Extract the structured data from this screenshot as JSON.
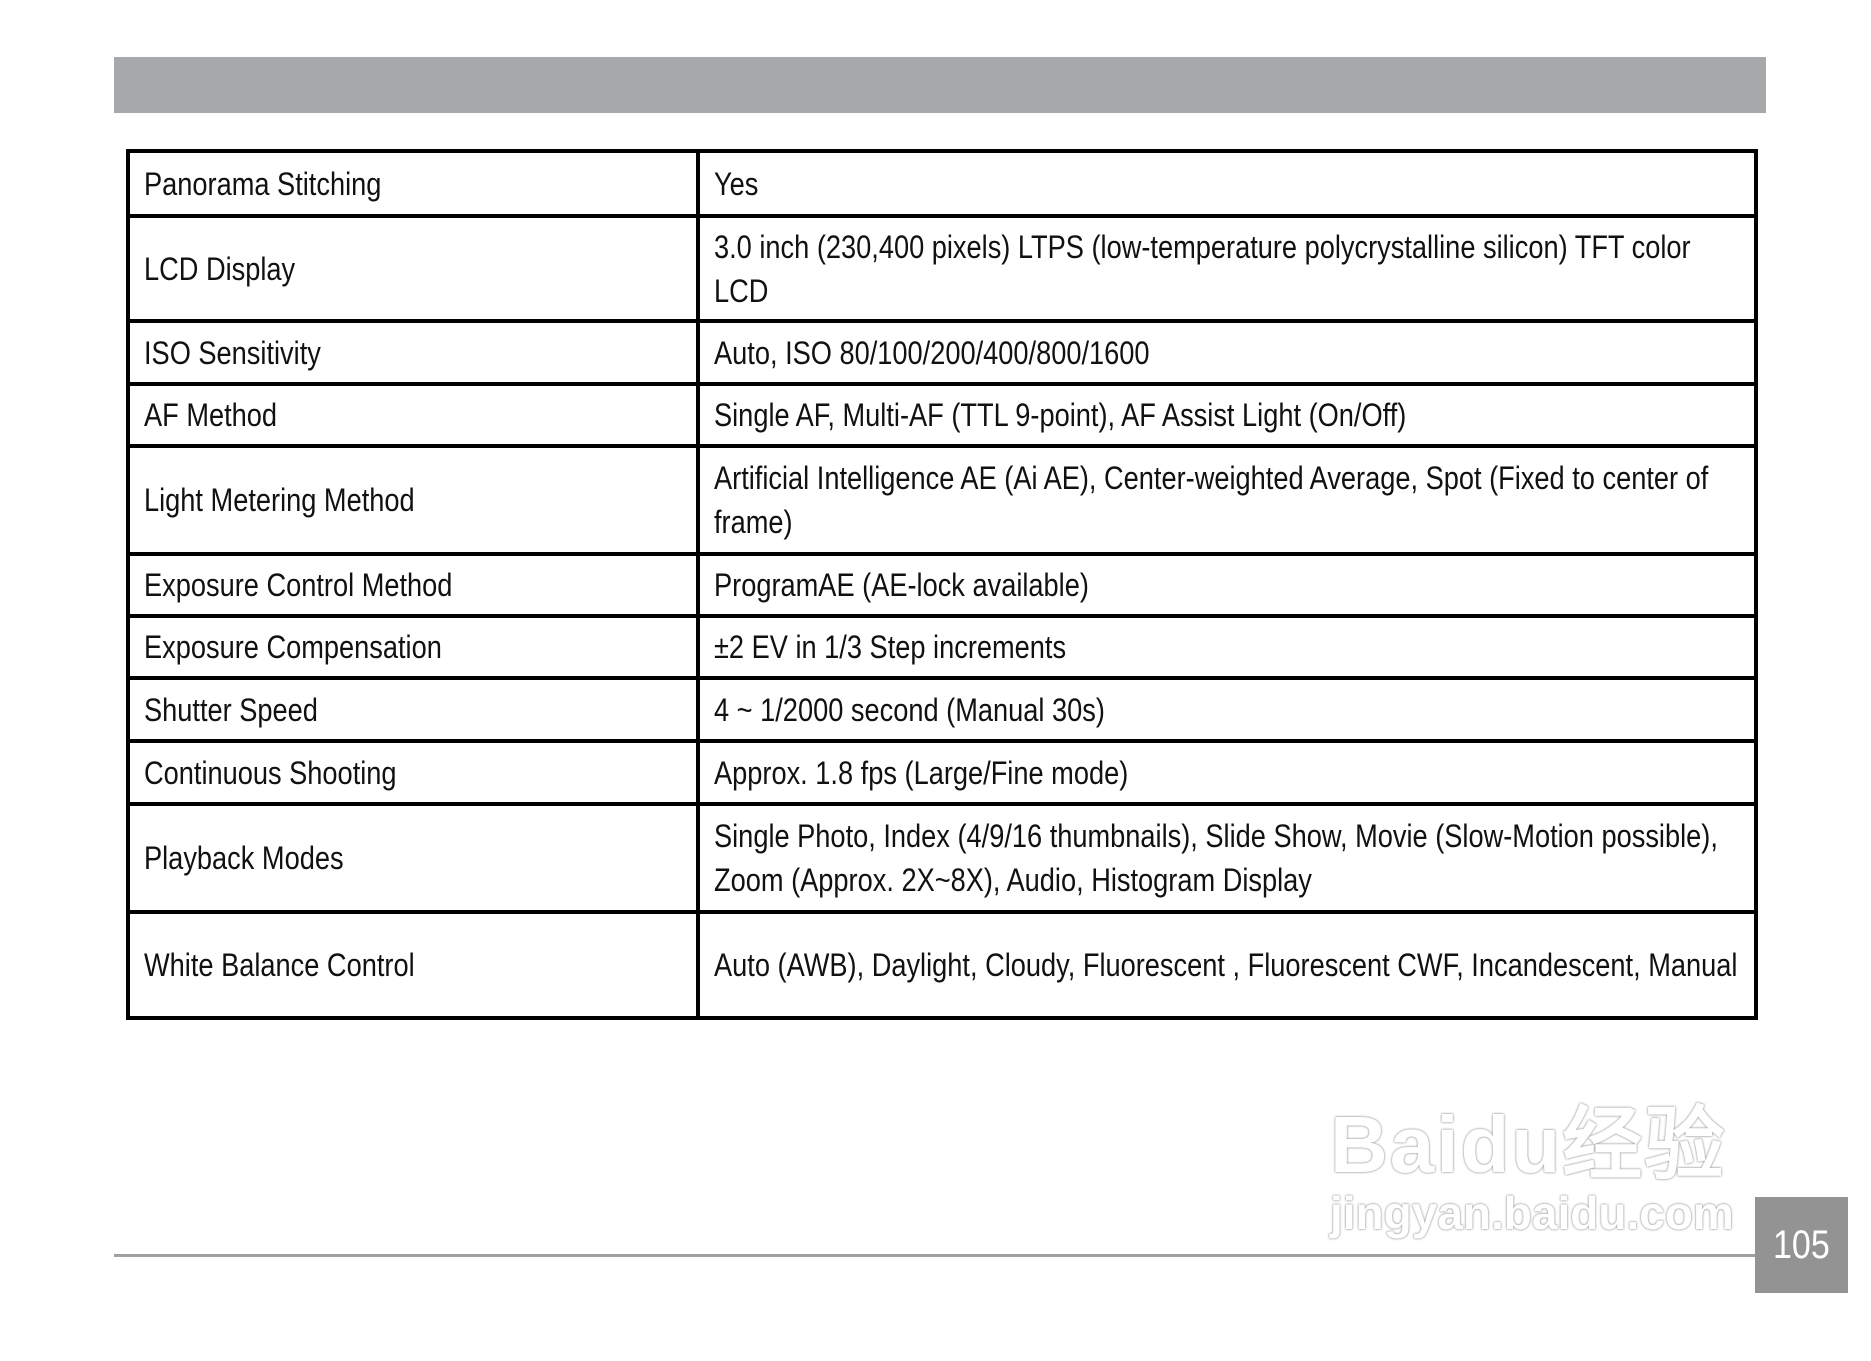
{
  "specs": [
    {
      "label": "Panorama Stitching",
      "value": "Yes"
    },
    {
      "label": "LCD Display",
      "value": "3.0 inch (230,400 pixels)  LTPS (low-temperature polycrystalline silicon) TFT color LCD"
    },
    {
      "label": "ISO Sensitivity",
      "value": "Auto, ISO 80/100/200/400/800/1600"
    },
    {
      "label": "AF Method",
      "value": "Single AF, Multi-AF (TTL 9-point), AF Assist Light (On/Off)"
    },
    {
      "label": "Light Metering Method",
      "value": "Artificial Intelligence AE (Ai AE), Center-weighted Average, Spot (Fixed to center of frame)"
    },
    {
      "label": "Exposure Control Method",
      "value": "ProgramAE (AE-lock available)"
    },
    {
      "label": "Exposure Compensation",
      "value": "±2 EV in 1/3 Step increments"
    },
    {
      "label": "Shutter Speed",
      "value": "4 ~ 1/2000 second (Manual 30s)"
    },
    {
      "label": "Continuous Shooting",
      "value": "Approx. 1.8 fps  (Large/Fine mode)"
    },
    {
      "label": "Playback Modes",
      "value": "Single Photo, Index (4/9/16 thumbnails), Slide Show, Movie (Slow-Motion possible), Zoom (Approx. 2X~8X), Audio, Histogram Display"
    },
    {
      "label": "White Balance Control",
      "value": "Auto (AWB), Daylight, Cloudy, Fluorescent , Fluorescent CWF, Incandescent, Manual"
    }
  ],
  "page_number": "105",
  "watermark": {
    "brand": "Baidu经验",
    "url": "jingyan.baidu.com"
  },
  "colors": {
    "header_bar": "#a7a8aa",
    "page_box": "#939393"
  }
}
